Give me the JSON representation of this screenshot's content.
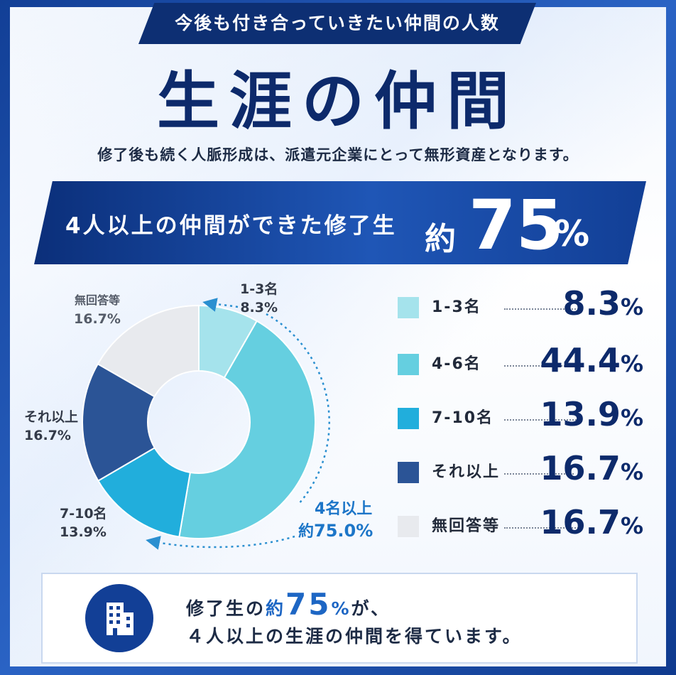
{
  "banner": {
    "title": "今後も付き合っていきたい仲間の人数"
  },
  "main_title": "生涯の仲間",
  "subtitle": "修了後も続く人脈形成は、派遣元企業にとって無形資産となります。",
  "highlight": {
    "label": "4人以上の仲間ができた修了生",
    "prefix": "約",
    "value": "75",
    "unit": "%"
  },
  "chart_data": {
    "type": "pie",
    "donut": true,
    "categories": [
      "1-3名",
      "4-6名",
      "7-10名",
      "それ以上",
      "無回答等"
    ],
    "values": [
      8.3,
      44.4,
      13.9,
      16.7,
      16.7
    ],
    "unit": "%",
    "colors": [
      "#a5e3ec",
      "#65cfe0",
      "#21aedc",
      "#2b5496",
      "#e8eaee"
    ],
    "callouts": {
      "c1": {
        "name": "1-3名",
        "value": "8.3%"
      },
      "c4": {
        "name": "それ以上",
        "value": "16.7%"
      },
      "c3": {
        "name": "7-10名",
        "value": "13.9%"
      },
      "c5": {
        "name": "無回答等",
        "value": "16.7%"
      },
      "group": {
        "name": "4名以上",
        "prefix": "約",
        "value": "75.0%"
      }
    },
    "legend": [
      {
        "label": "1-3名",
        "value": "8.3",
        "unit": "%"
      },
      {
        "label": "4-6名",
        "value": "44.4",
        "unit": "%"
      },
      {
        "label": "7-10名",
        "value": "13.9",
        "unit": "%"
      },
      {
        "label": "それ以上",
        "value": "16.7",
        "unit": "%"
      },
      {
        "label": "無回答等",
        "value": "16.7",
        "unit": "%"
      }
    ]
  },
  "footer": {
    "line1_a": "修了生の",
    "line1_b": "約",
    "line1_c": "75",
    "line1_d": "%",
    "line1_e": "が、",
    "line2": "４人以上の生涯の仲間を得ています。",
    "icon": "building-icon"
  }
}
